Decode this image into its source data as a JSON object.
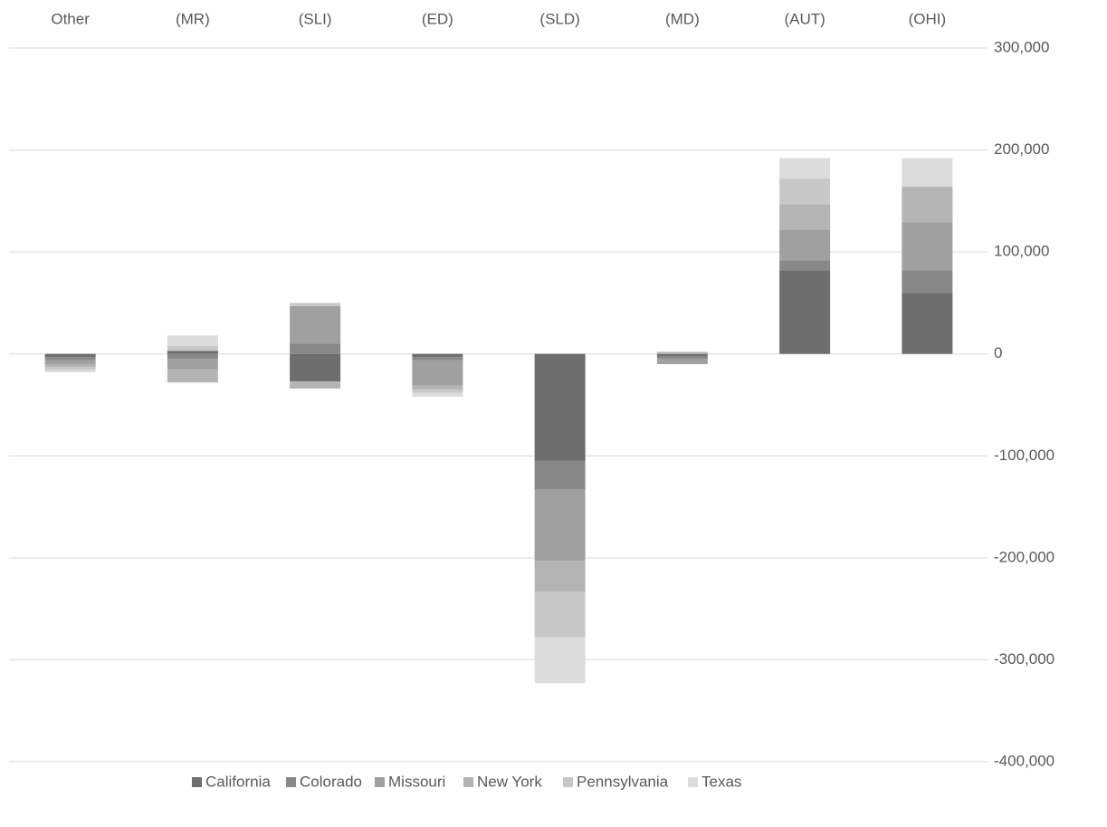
{
  "chart_data": {
    "type": "bar",
    "stacked": true,
    "categories": [
      "Other",
      "(MR)",
      "(SLI)",
      "(ED)",
      "(SLD)",
      "(MD)",
      "(AUT)",
      "(OHI)"
    ],
    "series": [
      {
        "name": "California",
        "color": "#6e6e6e",
        "values": [
          -3000,
          3000,
          -27000,
          -3000,
          -105000,
          -2000,
          82000,
          60000
        ]
      },
      {
        "name": "Colorado",
        "color": "#888888",
        "values": [
          -3000,
          -5000,
          10000,
          -3000,
          -28000,
          -3000,
          10000,
          22000
        ]
      },
      {
        "name": "Missouri",
        "color": "#a0a0a0",
        "values": [
          -4000,
          -10000,
          37000,
          -25000,
          -70000,
          -5000,
          30000,
          47000
        ]
      },
      {
        "name": "New York",
        "color": "#b4b4b4",
        "values": [
          -3000,
          -13000,
          -7000,
          -4000,
          -30000,
          2000,
          25000,
          35000
        ]
      },
      {
        "name": "Pennsylvania",
        "color": "#c8c8c8",
        "values": [
          -3000,
          5000,
          3000,
          -3000,
          -45000,
          0,
          25000,
          0
        ]
      },
      {
        "name": "Texas",
        "color": "#dcdcdc",
        "values": [
          -2000,
          10000,
          0,
          -4000,
          -45000,
          0,
          20000,
          28000
        ]
      }
    ],
    "ylim": [
      -400000,
      300000
    ],
    "yticks": [
      {
        "value": -400000,
        "label": "-400,000"
      },
      {
        "value": -300000,
        "label": "-300,000"
      },
      {
        "value": -200000,
        "label": "-200,000"
      },
      {
        "value": -100000,
        "label": "-100,000"
      },
      0,
      {
        "value": 100000,
        "label": "100,000"
      },
      {
        "value": 200000,
        "label": "200,000"
      },
      {
        "value": 300000,
        "label": "300,000"
      }
    ],
    "grid": true,
    "legend": "bottom"
  }
}
